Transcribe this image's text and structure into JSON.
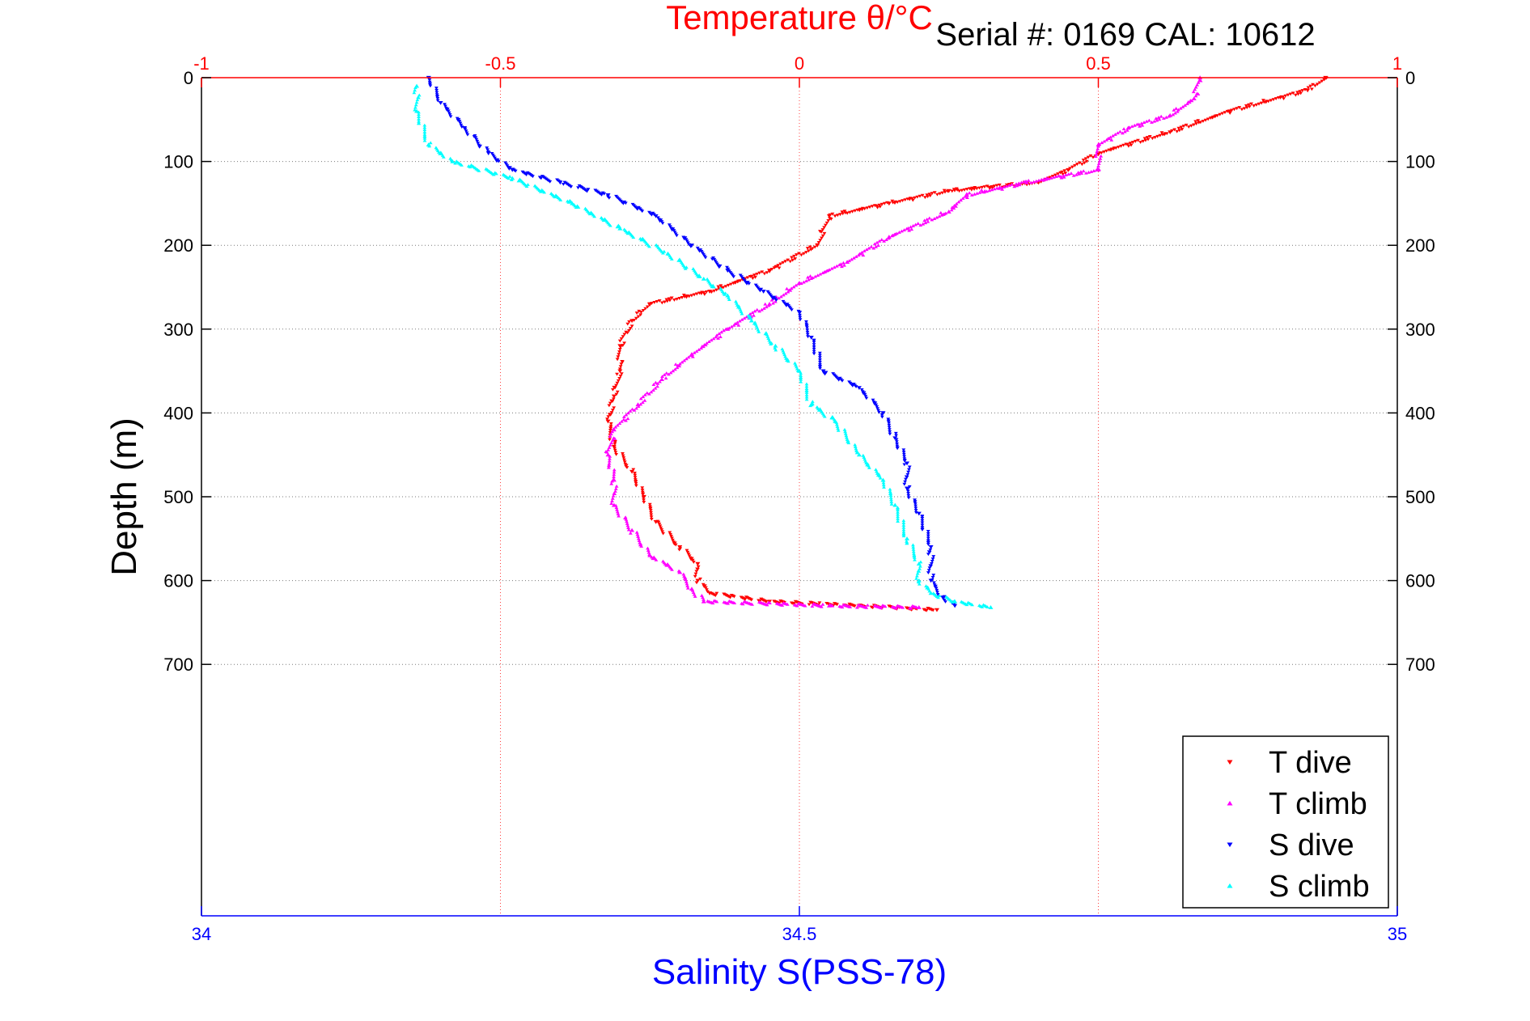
{
  "chart_data": {
    "type": "scatter",
    "title_top": "Temperature θ/°C",
    "serial_label": "Serial #: 0169 CAL: 10612",
    "xlabel_bottom": "Salinity S(PSS-78)",
    "ylabel": "Depth (m)",
    "y_axis": {
      "range": [
        0,
        1000
      ],
      "reversed": true,
      "ticks": [
        0,
        100,
        200,
        300,
        400,
        500,
        600,
        700
      ],
      "tick_labels": [
        "0",
        "100",
        "200",
        "300",
        "400",
        "500",
        "600",
        "700"
      ]
    },
    "x_top": {
      "range": [
        -1,
        1
      ],
      "ticks": [
        -1,
        -0.5,
        0,
        0.5,
        1
      ],
      "tick_labels": [
        "-1",
        "-0.5",
        "0",
        "0.5",
        "1"
      ]
    },
    "x_bottom": {
      "range": [
        34,
        35
      ],
      "ticks": [
        34,
        34.5,
        35
      ],
      "tick_labels": [
        "34",
        "34.5",
        "35"
      ]
    },
    "grid": true,
    "legend_position": "bottom-right",
    "colors": {
      "title": "#ff0000",
      "xlabel": "#0000ff",
      "top_ticks": "#ff0000",
      "bottom_ticks": "#0000ff"
    },
    "series": [
      {
        "name": "T dive",
        "axis": "top",
        "color": "#ff0000",
        "marker": "triangle-down",
        "points": [
          [
            0.88,
            0
          ],
          [
            0.85,
            15
          ],
          [
            0.72,
            40
          ],
          [
            0.62,
            65
          ],
          [
            0.5,
            90
          ],
          [
            0.45,
            110
          ],
          [
            0.4,
            125
          ],
          [
            0.25,
            135
          ],
          [
            0.15,
            150
          ],
          [
            0.05,
            165
          ],
          [
            0.03,
            200
          ],
          [
            -0.05,
            230
          ],
          [
            -0.15,
            255
          ],
          [
            -0.25,
            270
          ],
          [
            -0.28,
            290
          ],
          [
            -0.3,
            320
          ],
          [
            -0.3,
            350
          ],
          [
            -0.31,
            380
          ],
          [
            -0.32,
            410
          ],
          [
            -0.31,
            440
          ],
          [
            -0.28,
            470
          ],
          [
            -0.26,
            500
          ],
          [
            -0.24,
            530
          ],
          [
            -0.2,
            560
          ],
          [
            -0.17,
            580
          ],
          [
            -0.17,
            600
          ],
          [
            -0.15,
            615
          ],
          [
            -0.05,
            625
          ],
          [
            0.1,
            630
          ],
          [
            0.23,
            635
          ]
        ]
      },
      {
        "name": "T climb",
        "axis": "top",
        "color": "#ff00ff",
        "marker": "triangle-up",
        "points": [
          [
            0.67,
            0
          ],
          [
            0.66,
            25
          ],
          [
            0.62,
            45
          ],
          [
            0.55,
            60
          ],
          [
            0.5,
            80
          ],
          [
            0.5,
            110
          ],
          [
            0.38,
            125
          ],
          [
            0.28,
            140
          ],
          [
            0.25,
            160
          ],
          [
            0.15,
            190
          ],
          [
            0.08,
            220
          ],
          [
            0.0,
            245
          ],
          [
            -0.05,
            270
          ],
          [
            -0.12,
            300
          ],
          [
            -0.18,
            330
          ],
          [
            -0.23,
            360
          ],
          [
            -0.27,
            390
          ],
          [
            -0.31,
            420
          ],
          [
            -0.32,
            450
          ],
          [
            -0.31,
            480
          ],
          [
            -0.31,
            510
          ],
          [
            -0.28,
            540
          ],
          [
            -0.25,
            570
          ],
          [
            -0.2,
            590
          ],
          [
            -0.18,
            610
          ],
          [
            -0.16,
            625
          ],
          [
            0.05,
            630
          ],
          [
            0.2,
            632
          ]
        ]
      },
      {
        "name": "S dive",
        "axis": "bottom",
        "color": "#0000ff",
        "marker": "triangle-down",
        "points": [
          [
            34.19,
            0
          ],
          [
            34.2,
            30
          ],
          [
            34.22,
            60
          ],
          [
            34.24,
            90
          ],
          [
            34.26,
            110
          ],
          [
            34.3,
            125
          ],
          [
            34.34,
            140
          ],
          [
            34.38,
            165
          ],
          [
            34.41,
            200
          ],
          [
            34.44,
            230
          ],
          [
            34.47,
            255
          ],
          [
            34.5,
            280
          ],
          [
            34.51,
            310
          ],
          [
            34.52,
            350
          ],
          [
            34.55,
            370
          ],
          [
            34.57,
            400
          ],
          [
            34.58,
            430
          ],
          [
            34.59,
            460
          ],
          [
            34.59,
            490
          ],
          [
            34.6,
            520
          ],
          [
            34.61,
            560
          ],
          [
            34.61,
            600
          ],
          [
            34.62,
            620
          ],
          [
            34.63,
            630
          ]
        ]
      },
      {
        "name": "S climb",
        "axis": "bottom",
        "color": "#00ffff",
        "marker": "triangle-up",
        "points": [
          [
            34.18,
            10
          ],
          [
            34.18,
            40
          ],
          [
            34.19,
            80
          ],
          [
            34.21,
            100
          ],
          [
            34.26,
            120
          ],
          [
            34.31,
            150
          ],
          [
            34.35,
            180
          ],
          [
            34.39,
            210
          ],
          [
            34.42,
            240
          ],
          [
            34.44,
            260
          ],
          [
            34.46,
            290
          ],
          [
            34.48,
            320
          ],
          [
            34.5,
            350
          ],
          [
            34.51,
            390
          ],
          [
            34.53,
            410
          ],
          [
            34.55,
            450
          ],
          [
            34.57,
            480
          ],
          [
            34.58,
            510
          ],
          [
            34.59,
            550
          ],
          [
            34.6,
            580
          ],
          [
            34.6,
            600
          ],
          [
            34.61,
            615
          ],
          [
            34.63,
            625
          ],
          [
            34.66,
            632
          ]
        ]
      }
    ]
  }
}
